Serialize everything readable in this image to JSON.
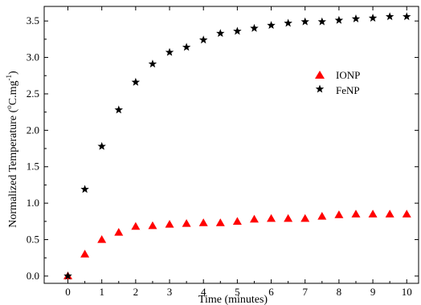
{
  "chart_data": {
    "type": "scatter",
    "xlabel": "Time (minutes)",
    "ylabel_main": "Normalized Temperature (",
    "ylabel_degree": "o",
    "ylabel_unit": "C.mg",
    "ylabel_exponent": "-1",
    "ylabel_close": ")",
    "xlim": [
      -0.7,
      10.35
    ],
    "ylim": [
      -0.1,
      3.7
    ],
    "xticks": [
      "0",
      "1",
      "2",
      "3",
      "4",
      "5",
      "6",
      "7",
      "8",
      "9",
      "10"
    ],
    "yticks": [
      "0.0",
      "0.5",
      "1.0",
      "1.5",
      "2.0",
      "2.5",
      "3.0",
      "3.5"
    ],
    "legend_position": "right",
    "series": [
      {
        "name": "IONP",
        "marker": "triangle",
        "color": "#ff0000",
        "x": [
          0,
          0.5,
          1,
          1.5,
          2,
          2.5,
          3,
          3.5,
          4,
          4.5,
          5,
          5.5,
          6,
          6.5,
          7,
          7.5,
          8,
          8.5,
          9,
          9.5,
          10
        ],
        "y": [
          0.0,
          0.3,
          0.5,
          0.6,
          0.68,
          0.69,
          0.71,
          0.72,
          0.73,
          0.73,
          0.75,
          0.78,
          0.79,
          0.79,
          0.79,
          0.82,
          0.84,
          0.85,
          0.85,
          0.85,
          0.85
        ]
      },
      {
        "name": "FeNP",
        "marker": "star",
        "color": "#000000",
        "x": [
          0,
          0.5,
          1,
          1.5,
          2,
          2.5,
          3,
          3.5,
          4,
          4.5,
          5,
          5.5,
          6,
          6.5,
          7,
          7.5,
          8,
          8.5,
          9,
          9.5,
          10
        ],
        "y": [
          0.0,
          1.19,
          1.78,
          2.28,
          2.66,
          2.91,
          3.07,
          3.14,
          3.24,
          3.33,
          3.36,
          3.4,
          3.44,
          3.47,
          3.49,
          3.49,
          3.51,
          3.53,
          3.54,
          3.56,
          3.56
        ]
      }
    ]
  }
}
